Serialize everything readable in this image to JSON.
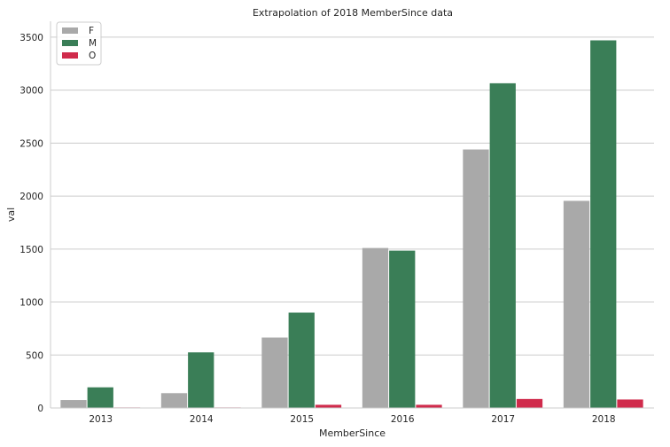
{
  "chart_data": {
    "type": "bar",
    "title": "Extrapolation of 2018 MemberSince data",
    "xlabel": "MemberSince",
    "ylabel": "val",
    "categories": [
      "2013",
      "2014",
      "2015",
      "2016",
      "2017",
      "2018"
    ],
    "series": [
      {
        "name": "F",
        "color": "#a9a9a9",
        "values": [
          75,
          140,
          665,
          1510,
          2440,
          1955
        ]
      },
      {
        "name": "M",
        "color": "#3a7e57",
        "values": [
          195,
          525,
          900,
          1485,
          3065,
          3470
        ]
      },
      {
        "name": "O",
        "color": "#d02b4c",
        "values": [
          5,
          5,
          30,
          30,
          85,
          80
        ]
      }
    ],
    "ylim": [
      0,
      3650
    ],
    "yticks": [
      0,
      500,
      1000,
      1500,
      2000,
      2500,
      3000,
      3500
    ],
    "ytick_labels": [
      "0",
      "500",
      "1000",
      "1500",
      "2000",
      "2500",
      "3000",
      "3500"
    ],
    "grid": "horizontal",
    "legend_position": "top-left"
  }
}
